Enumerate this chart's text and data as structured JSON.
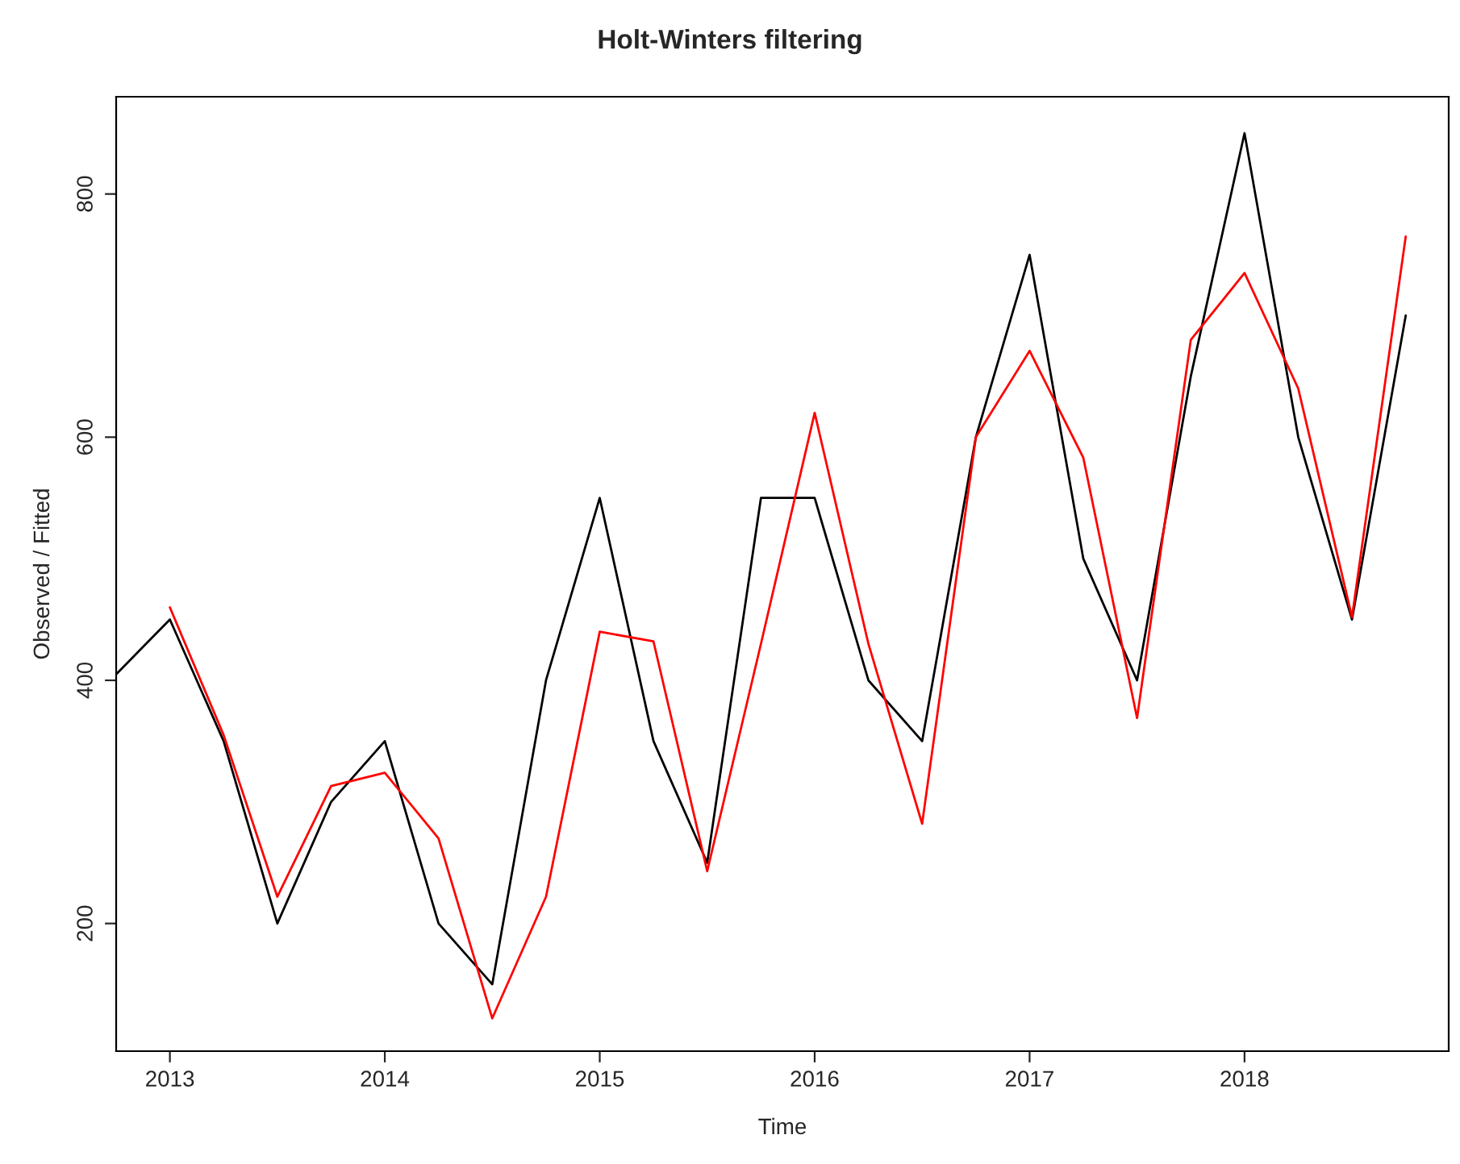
{
  "chart_data": {
    "type": "line",
    "title": "Holt-Winters filtering",
    "xlabel": "Time",
    "ylabel": "Observed / Fitted",
    "xlim": [
      2012.75,
      2018.95
    ],
    "ylim": [
      95,
      880
    ],
    "xticks": [
      2013,
      2014,
      2015,
      2016,
      2017,
      2018
    ],
    "yticks": [
      200,
      400,
      600,
      800
    ],
    "grid": false,
    "legend": false,
    "series": [
      {
        "color": "#000000",
        "x": [
          2012.75,
          2013,
          2013.25,
          2013.5,
          2013.75,
          2014,
          2014.25,
          2014.5,
          2014.75,
          2015,
          2015.25,
          2015.5,
          2015.75,
          2016,
          2016.25,
          2016.5,
          2016.75,
          2017,
          2017.25,
          2017.5,
          2017.75,
          2018,
          2018.25,
          2018.5,
          2018.75
        ],
        "values": [
          405,
          450,
          350,
          200,
          300,
          350,
          200,
          150,
          400,
          550,
          350,
          250,
          550,
          550,
          400,
          350,
          600,
          750,
          500,
          400,
          650,
          850,
          600,
          450,
          700
        ]
      },
      {
        "color": "#ff0000",
        "x": [
          2013,
          2013.25,
          2013.5,
          2013.75,
          2014,
          2014.25,
          2014.5,
          2014.75,
          2015,
          2015.25,
          2015.5,
          2015.75,
          2016,
          2016.25,
          2016.5,
          2016.75,
          2017,
          2017.25,
          2017.5,
          2017.75,
          2018,
          2018.25,
          2018.5,
          2018.75
        ],
        "values": [
          460,
          355,
          222,
          313,
          324,
          270,
          122,
          222,
          440,
          432,
          243,
          430,
          620,
          430,
          282,
          600,
          671,
          583,
          369,
          680,
          735,
          640,
          452,
          765
        ]
      }
    ]
  }
}
